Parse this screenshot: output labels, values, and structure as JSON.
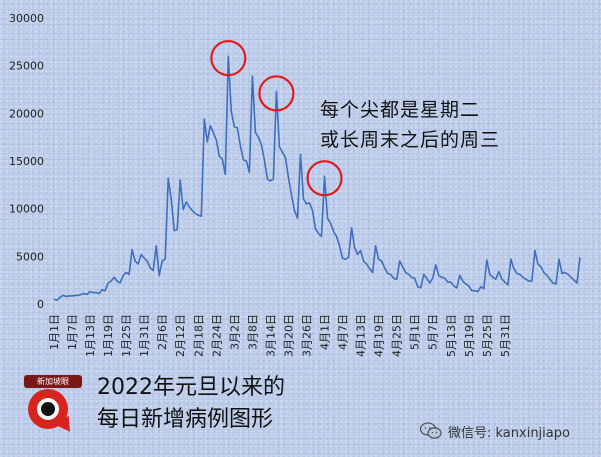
{
  "chart_data": {
    "type": "line",
    "title": "",
    "xlabel": "",
    "ylabel": "",
    "ylim": [
      0,
      30000
    ],
    "yticks": [
      0,
      5000,
      10000,
      15000,
      20000,
      25000,
      30000
    ],
    "grid": false,
    "series_color": "#3e6fbf",
    "x_tick_labels": [
      "1月1日",
      "1月7日",
      "1月13日",
      "1月19日",
      "1月25日",
      "1月31日",
      "2月6日",
      "2月12日",
      "2月18日",
      "2月24日",
      "3月2日",
      "3月8日",
      "3月14日",
      "3月20日",
      "3月26日",
      "4月1日",
      "4月7日",
      "4月13日",
      "4月19日",
      "4月25日",
      "5月1日",
      "5月7日",
      "5月13日",
      "5月19日",
      "5月25日",
      "5月31日"
    ],
    "series": [
      {
        "values": [
          500,
          400,
          700,
          900,
          800,
          850,
          850,
          900,
          900,
          1000,
          1100,
          1000,
          1300,
          1200,
          1200,
          1100,
          1500,
          1400,
          2200,
          2400,
          2800,
          2400,
          2200,
          3000,
          3300,
          3100,
          5700,
          4500,
          4200,
          5200,
          4800,
          4500,
          3800,
          3500,
          6100,
          3000,
          4500,
          4700,
          13200,
          11000,
          7700,
          7800,
          13000,
          9900,
          10700,
          10200,
          9800,
          9500,
          9300,
          9200,
          19400,
          17000,
          18700,
          18000,
          17200,
          15500,
          15200,
          13600,
          26000,
          20200,
          18600,
          18500,
          16600,
          15100,
          15000,
          13800,
          23900,
          18000,
          17500,
          16700,
          15100,
          13100,
          12900,
          13100,
          22300,
          16500,
          15900,
          15400,
          13300,
          11400,
          9800,
          9000,
          15700,
          11000,
          10500,
          10600,
          9800,
          7900,
          7400,
          7100,
          13400,
          9000,
          8500,
          7600,
          7100,
          6100,
          4800,
          4700,
          4900,
          8000,
          5900,
          5200,
          5600,
          4500,
          4200,
          3700,
          3300,
          6100,
          4700,
          4500,
          3800,
          3200,
          3100,
          2700,
          2600,
          4500,
          3900,
          3300,
          3100,
          2800,
          2700,
          1800,
          1700,
          3100,
          2700,
          2200,
          2700,
          4100,
          3000,
          2800,
          2700,
          2300,
          2300,
          1900,
          1700,
          3000,
          2400,
          2100,
          1900,
          1400,
          1400,
          1300,
          1800,
          1600,
          4600,
          3100,
          2800,
          2600,
          3400,
          2600,
          2300,
          2000,
          4700,
          3700,
          3200,
          3100,
          2800,
          2600,
          2400,
          2400,
          5600,
          4200,
          3900,
          3300,
          3000,
          2600,
          2200,
          2100,
          4700,
          3200,
          3300,
          3100,
          2800,
          2500,
          2200,
          4900
        ]
      }
    ],
    "annotations": [
      {
        "label": "peak-circle",
        "index": 58
      },
      {
        "label": "peak-circle",
        "index": 74
      },
      {
        "label": "peak-circle",
        "index": 90
      }
    ],
    "circle_color": "#e31b1b"
  },
  "annotation_text": [
    "每个尖都是星期二",
    "或长周末之后的周三"
  ],
  "caption": [
    "2022年元旦以来的",
    "每日新增病例图形"
  ],
  "logo_text": "新加坡眼",
  "watermark": "微信号: kanxinjiapo"
}
